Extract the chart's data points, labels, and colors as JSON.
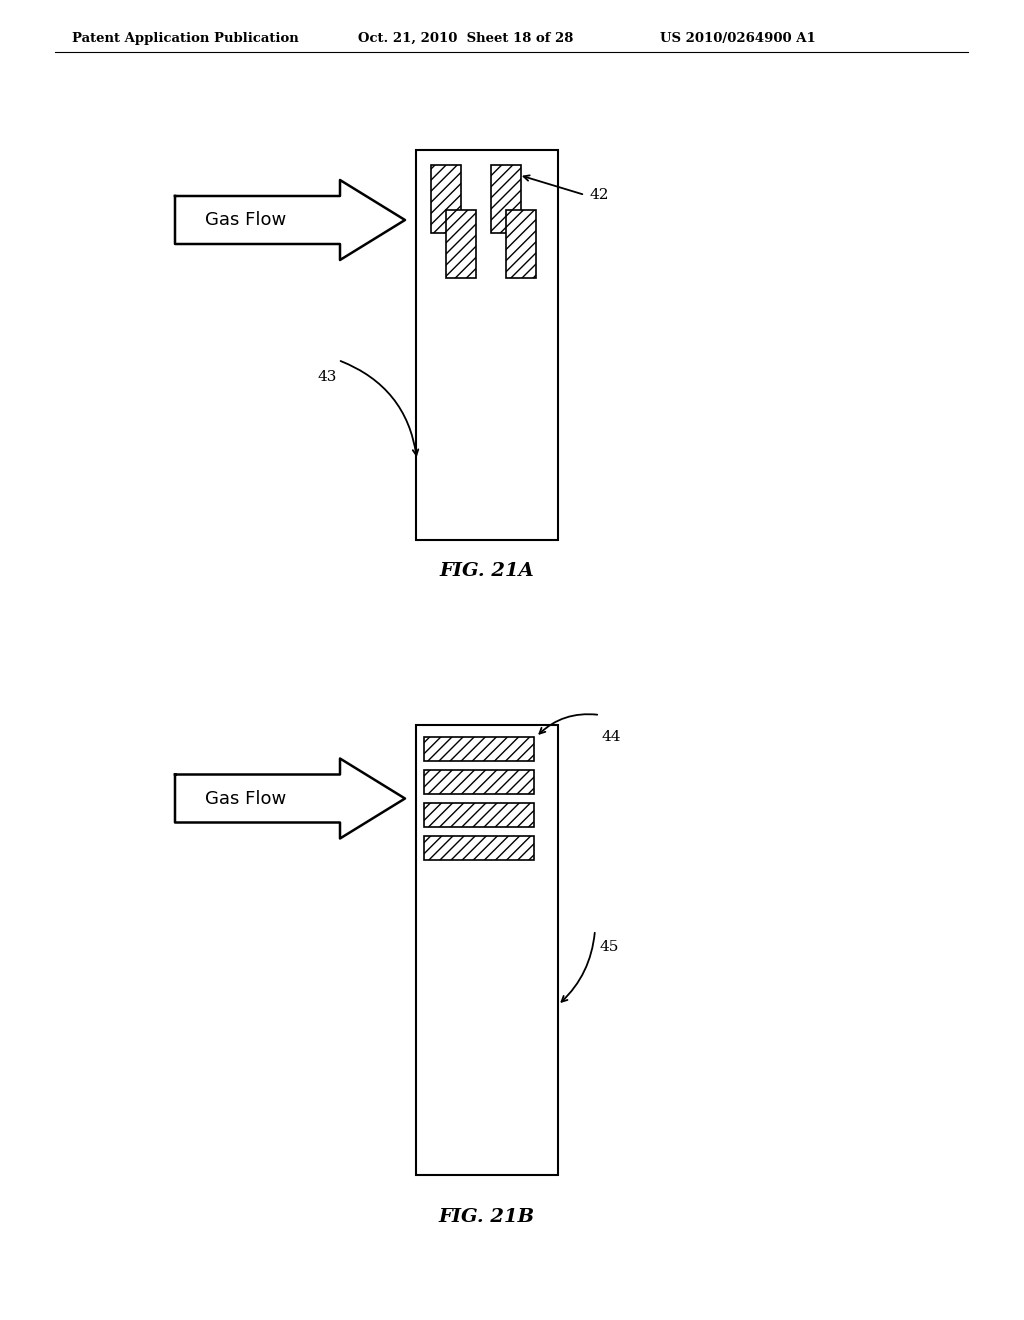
{
  "header_left": "Patent Application Publication",
  "header_mid": "Oct. 21, 2010  Sheet 18 of 28",
  "header_right": "US 2010/0264900 A1",
  "fig21a_label": "FIG. 21A",
  "fig21b_label": "FIG. 21B",
  "background_color": "#ffffff",
  "arrow_label": "Gas Flow",
  "label_42": "42",
  "label_43": "43",
  "label_44": "44",
  "label_45": "45"
}
